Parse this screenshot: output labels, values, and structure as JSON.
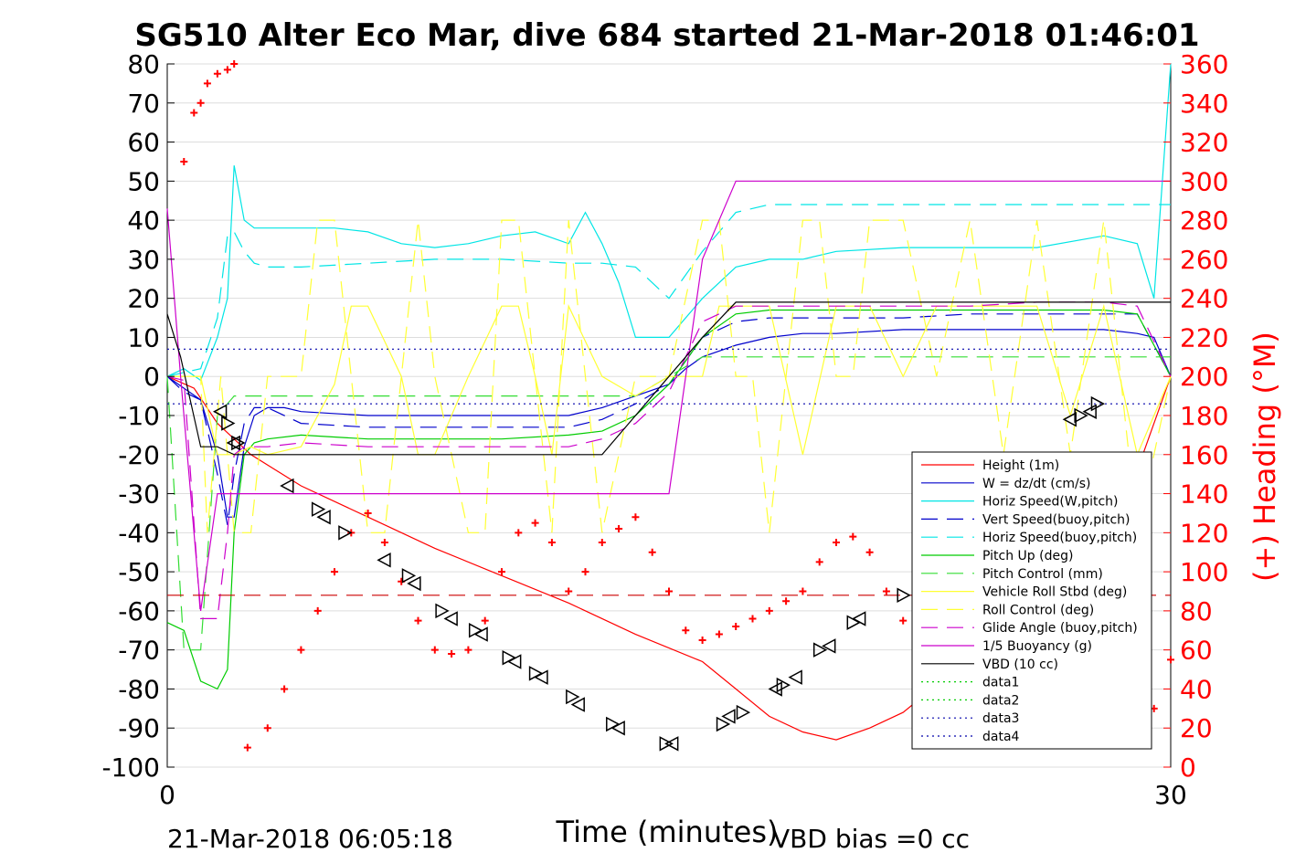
{
  "chart_data": {
    "type": "line",
    "title": "SG510 Alter Eco Mar, dive 684 started 21-Mar-2018 01:46:01",
    "xlabel": "Time (minutes)",
    "ylabel_right": "(+) Heading (°M)",
    "footer_left": "21-Mar-2018 06:05:18",
    "footer_right": "VBD bias =0 cc",
    "xlim": [
      0,
      30
    ],
    "ylim": [
      -100,
      80
    ],
    "ylim_right": [
      0,
      360
    ],
    "x_ticks": [
      0,
      30
    ],
    "y_ticks": [
      80,
      70,
      60,
      50,
      40,
      30,
      20,
      10,
      0,
      -10,
      -20,
      -30,
      -40,
      -50,
      -60,
      -70,
      -80,
      -90,
      -100
    ],
    "y_ticks_right": [
      360,
      340,
      320,
      300,
      280,
      260,
      240,
      220,
      200,
      180,
      160,
      140,
      120,
      100,
      80,
      60,
      40,
      20,
      0
    ],
    "grid": true,
    "legend_position": "lower-right",
    "colors": {
      "height": "#ff0000",
      "w": "#0000cc",
      "horiz_speed": "#00e5e5",
      "vert_speed_buoy": "#0000cc",
      "horiz_speed_buoy": "#00e5e5",
      "pitch_up": "#00cc00",
      "pitch_control": "#33dd33",
      "roll": "#ffff33",
      "roll_control": "#ffff33",
      "glide_angle": "#cc00cc",
      "buoyancy": "#cc00cc",
      "vbd": "#000000",
      "heading": "#ff0000",
      "axis_right": "#ff0000"
    },
    "legend": [
      {
        "label": "Height (1m)",
        "color": "#ff0000",
        "style": "solid"
      },
      {
        "label": "W = dz/dt (cm/s)",
        "color": "#0000cc",
        "style": "solid"
      },
      {
        "label": "Horiz Speed(W,pitch)",
        "color": "#00e5e5",
        "style": "solid"
      },
      {
        "label": "Vert Speed(buoy,pitch)",
        "color": "#0000cc",
        "style": "dashed"
      },
      {
        "label": "Horiz Speed(buoy,pitch)",
        "color": "#00e5e5",
        "style": "dashed"
      },
      {
        "label": "Pitch Up (deg)",
        "color": "#00cc00",
        "style": "solid"
      },
      {
        "label": "Pitch Control (mm)",
        "color": "#33dd33",
        "style": "dashed"
      },
      {
        "label": "Vehicle Roll Stbd (deg)",
        "color": "#ffff33",
        "style": "solid"
      },
      {
        "label": "Roll Control (deg)",
        "color": "#ffff33",
        "style": "dashed"
      },
      {
        "label": "Glide Angle (buoy,pitch)",
        "color": "#cc00cc",
        "style": "dashed"
      },
      {
        "label": "1/5 Buoyancy (g)",
        "color": "#cc00cc",
        "style": "solid"
      },
      {
        "label": "VBD (10 cc)",
        "color": "#000000",
        "style": "solid"
      },
      {
        "label": "data1",
        "color": "#00cc00",
        "style": "dotted"
      },
      {
        "label": "data2",
        "color": "#00cc00",
        "style": "dotted"
      },
      {
        "label": "data3",
        "color": "#0000aa",
        "style": "dotted"
      },
      {
        "label": "data4",
        "color": "#0000aa",
        "style": "dotted"
      }
    ],
    "series": [
      {
        "key": "height",
        "x": [
          0,
          0.8,
          1.5,
          2.5,
          4,
          6,
          8,
          10,
          12,
          14,
          16,
          17,
          18,
          19,
          20,
          21,
          22,
          23,
          24,
          25,
          26,
          27,
          28,
          29,
          30
        ],
        "y": [
          0,
          -3,
          -12,
          -20,
          -28,
          -36,
          -44,
          -51,
          -58,
          -66,
          -73,
          -80,
          -87,
          -91,
          -93,
          -90,
          -86,
          -79,
          -72,
          -64,
          -56,
          -47,
          -38,
          -24,
          0
        ]
      },
      {
        "key": "w",
        "x": [
          0,
          0.5,
          1,
          1.5,
          1.8,
          2,
          2.3,
          2.6,
          3,
          3.5,
          4,
          6,
          8,
          10,
          12,
          13,
          14,
          15,
          15.5,
          16,
          17,
          18,
          19,
          20,
          22,
          24,
          26,
          28,
          29,
          29.5,
          30
        ],
        "y": [
          0,
          -3,
          -6,
          -20,
          -36,
          -36,
          -18,
          -10,
          -8,
          -8,
          -9,
          -10,
          -10,
          -10,
          -10,
          -8,
          -5,
          -2,
          2,
          5,
          8,
          10,
          11,
          11,
          12,
          12,
          12,
          12,
          11,
          10,
          0
        ]
      },
      {
        "key": "horiz_speed",
        "x": [
          0,
          0.5,
          1,
          1.5,
          1.8,
          2,
          2.3,
          2.6,
          3,
          4,
          5,
          6,
          7,
          8,
          9,
          10,
          11,
          12,
          12.5,
          13,
          13.5,
          14,
          15,
          16,
          17,
          18,
          19,
          20,
          22,
          24,
          26,
          28,
          29,
          29.5,
          30
        ],
        "y": [
          0,
          2,
          -1,
          10,
          20,
          54,
          40,
          38,
          38,
          38,
          38,
          37,
          34,
          33,
          34,
          36,
          37,
          34,
          42,
          34,
          24,
          10,
          10,
          20,
          28,
          30,
          30,
          32,
          33,
          33,
          33,
          36,
          34,
          20,
          80
        ]
      },
      {
        "key": "vert_speed_buoy",
        "x": [
          0,
          0.5,
          1,
          1.5,
          1.8,
          2,
          2.3,
          2.6,
          3,
          4,
          6,
          8,
          10,
          12,
          13,
          14,
          15,
          16,
          17,
          18,
          20,
          22,
          24,
          26,
          28,
          29,
          30
        ],
        "y": [
          0,
          -4,
          -6,
          -25,
          -38,
          -25,
          -12,
          -8,
          -8,
          -12,
          -13,
          -13,
          -13,
          -13,
          -11,
          -7,
          -2,
          10,
          14,
          15,
          15,
          15,
          16,
          16,
          16,
          16,
          0
        ]
      },
      {
        "key": "horiz_speed_buoy",
        "x": [
          0,
          0.5,
          1,
          1.5,
          1.8,
          2,
          2.3,
          2.6,
          3,
          4,
          6,
          8,
          10,
          12,
          13,
          14,
          15,
          16,
          17,
          18,
          20,
          22,
          24,
          26,
          28,
          29,
          30
        ],
        "y": [
          0,
          1,
          2,
          15,
          36,
          37,
          32,
          29,
          28,
          28,
          29,
          30,
          30,
          29,
          29,
          28,
          20,
          32,
          42,
          44,
          44,
          44,
          44,
          44,
          44,
          44,
          44
        ]
      },
      {
        "key": "pitch_up",
        "x": [
          0,
          0.5,
          1,
          1.5,
          1.8,
          2,
          2.3,
          2.6,
          3,
          4,
          6,
          8,
          10,
          12,
          13,
          14,
          15,
          16,
          17,
          18,
          20,
          22,
          24,
          26,
          28,
          29,
          30
        ],
        "y": [
          -63,
          -65,
          -78,
          -80,
          -75,
          -40,
          -20,
          -17,
          -16,
          -15,
          -16,
          -16,
          -16,
          -15,
          -14,
          -10,
          -2,
          10,
          16,
          17,
          17,
          17,
          17,
          17,
          17,
          16,
          0
        ]
      },
      {
        "key": "pitch_control",
        "x": [
          0,
          0.5,
          1,
          1.5,
          2,
          2.5,
          3,
          6,
          9,
          12,
          14,
          15,
          16,
          17,
          18,
          20,
          22,
          24,
          26,
          28,
          30
        ],
        "y": [
          0,
          -70,
          -70,
          -10,
          -5,
          -5,
          -5,
          -5,
          -5,
          -5,
          -5,
          0,
          5,
          5,
          5,
          5,
          5,
          5,
          5,
          5,
          5
        ]
      },
      {
        "key": "roll",
        "x": [
          0,
          1,
          1.5,
          2,
          2.5,
          3,
          4,
          5,
          5.5,
          6,
          7,
          7.5,
          8,
          9,
          10,
          10.5,
          11,
          11.5,
          12,
          13,
          14,
          15,
          16,
          16.5,
          17,
          18,
          19,
          20,
          21,
          22,
          23,
          24,
          25,
          26,
          27,
          28,
          29,
          30
        ],
        "y": [
          0,
          0,
          -20,
          -20,
          -18,
          -20,
          -18,
          -2,
          18,
          18,
          0,
          -20,
          -20,
          0,
          18,
          18,
          0,
          -20,
          18,
          0,
          -5,
          0,
          0,
          18,
          18,
          18,
          -20,
          18,
          18,
          0,
          18,
          18,
          18,
          18,
          -10,
          18,
          -20,
          0
        ]
      },
      {
        "key": "roll_control",
        "x": [
          0,
          1,
          1.2,
          1.6,
          2,
          2.5,
          3,
          4,
          4.5,
          5,
          5.5,
          6,
          6.5,
          7,
          7.5,
          8,
          9,
          9.5,
          10,
          10.5,
          11,
          11.5,
          12,
          12.5,
          13,
          14,
          15,
          16,
          16.5,
          17,
          17.5,
          18,
          19,
          19.5,
          20,
          20.5,
          21,
          22,
          23,
          24,
          25,
          26,
          27,
          28,
          29,
          30
        ],
        "y": [
          0,
          0,
          -40,
          0,
          -40,
          -40,
          0,
          0,
          40,
          40,
          0,
          -40,
          -40,
          0,
          40,
          0,
          -40,
          -40,
          40,
          40,
          0,
          -40,
          40,
          0,
          -40,
          0,
          0,
          40,
          40,
          0,
          0,
          -40,
          40,
          40,
          0,
          0,
          40,
          40,
          0,
          40,
          -20,
          40,
          -20,
          40,
          -40,
          0
        ]
      },
      {
        "key": "glide_angle",
        "x": [
          0,
          0.5,
          1,
          1.5,
          1.8,
          2,
          2.3,
          2.6,
          3,
          4,
          6,
          8,
          10,
          12,
          13,
          14,
          15,
          16,
          17,
          18,
          20,
          22,
          24,
          26,
          28,
          29,
          30
        ],
        "y": [
          0,
          -1,
          -62,
          -62,
          -40,
          -20,
          -18,
          -18,
          -18,
          -17,
          -18,
          -18,
          -18,
          -18,
          -16,
          -12,
          -4,
          14,
          18,
          18,
          18,
          18,
          18,
          19,
          19,
          18,
          0
        ]
      },
      {
        "key": "buoyancy",
        "x": [
          0,
          0.4,
          1,
          1.5,
          2,
          13,
          15,
          16,
          17,
          30
        ],
        "y": [
          43,
          0,
          -60,
          -30,
          -30,
          -30,
          -30,
          30,
          50,
          50
        ]
      },
      {
        "key": "vbd",
        "x": [
          0,
          0.4,
          1,
          1.5,
          2,
          13,
          14,
          15,
          16,
          17,
          30
        ],
        "y": [
          16,
          5,
          -18,
          -18,
          -20,
          -20,
          -10,
          0,
          10,
          19,
          19
        ]
      },
      {
        "key": "data3",
        "x": [
          0,
          30
        ],
        "y": [
          7,
          7
        ]
      },
      {
        "key": "data4",
        "x": [
          0,
          30
        ],
        "y": [
          -7,
          -7
        ]
      },
      {
        "key": "heading_ref",
        "x": [
          0,
          30
        ],
        "y": [
          -56,
          -56
        ]
      }
    ],
    "heading": {
      "x": [
        0.5,
        0.8,
        1,
        1.2,
        1.5,
        1.8,
        2,
        2.4,
        3,
        3.5,
        4,
        4.5,
        5,
        5.5,
        6,
        6.5,
        7,
        7.5,
        8,
        8.5,
        9,
        9.5,
        10,
        10.5,
        11,
        11.5,
        12,
        12.5,
        13,
        13.5,
        14,
        14.5,
        15,
        15.5,
        16,
        16.5,
        17,
        17.5,
        18,
        18.5,
        19,
        19.5,
        20,
        20.5,
        21,
        21.5,
        22,
        22.5,
        23,
        23.5,
        24,
        24.5,
        25,
        25.5,
        26,
        26.5,
        27,
        27.5,
        28,
        28.5,
        29,
        29.5,
        30
      ],
      "y": [
        310,
        335,
        340,
        350,
        355,
        357,
        360,
        10,
        20,
        40,
        60,
        80,
        100,
        120,
        130,
        115,
        95,
        75,
        60,
        58,
        60,
        75,
        100,
        120,
        125,
        115,
        90,
        100,
        115,
        122,
        128,
        110,
        90,
        70,
        65,
        68,
        72,
        76,
        80,
        85,
        90,
        105,
        115,
        118,
        110,
        90,
        75,
        65,
        60,
        75,
        90,
        100,
        105,
        98,
        90,
        75,
        60,
        55,
        45,
        40,
        35,
        30,
        55
      ]
    },
    "markers": {
      "x": [
        1.6,
        1.8,
        2,
        2.1,
        3.6,
        4.5,
        4.7,
        5.3,
        6.5,
        7.2,
        7.4,
        8.2,
        8.5,
        9.2,
        9.4,
        10.2,
        10.4,
        11,
        11.2,
        12.1,
        12.3,
        13.3,
        13.5,
        14.9,
        15.1,
        16.6,
        16.8,
        17.2,
        18.2,
        18.4,
        18.8,
        19.5,
        19.8,
        20.5,
        20.7,
        22,
        27,
        27.3,
        27.6,
        27.8
      ],
      "y": [
        -9,
        -12,
        -17,
        -17,
        -28,
        -34,
        -36,
        -40,
        -47,
        -51,
        -53,
        -60,
        -62,
        -65,
        -66,
        -72,
        -73,
        -76,
        -77,
        -82,
        -84,
        -89,
        -90,
        -94,
        -94,
        -89,
        -87,
        -86,
        -80,
        -79,
        -77,
        -70,
        -69,
        -63,
        -62,
        -56,
        -11,
        -10,
        -9,
        -7
      ]
    }
  }
}
